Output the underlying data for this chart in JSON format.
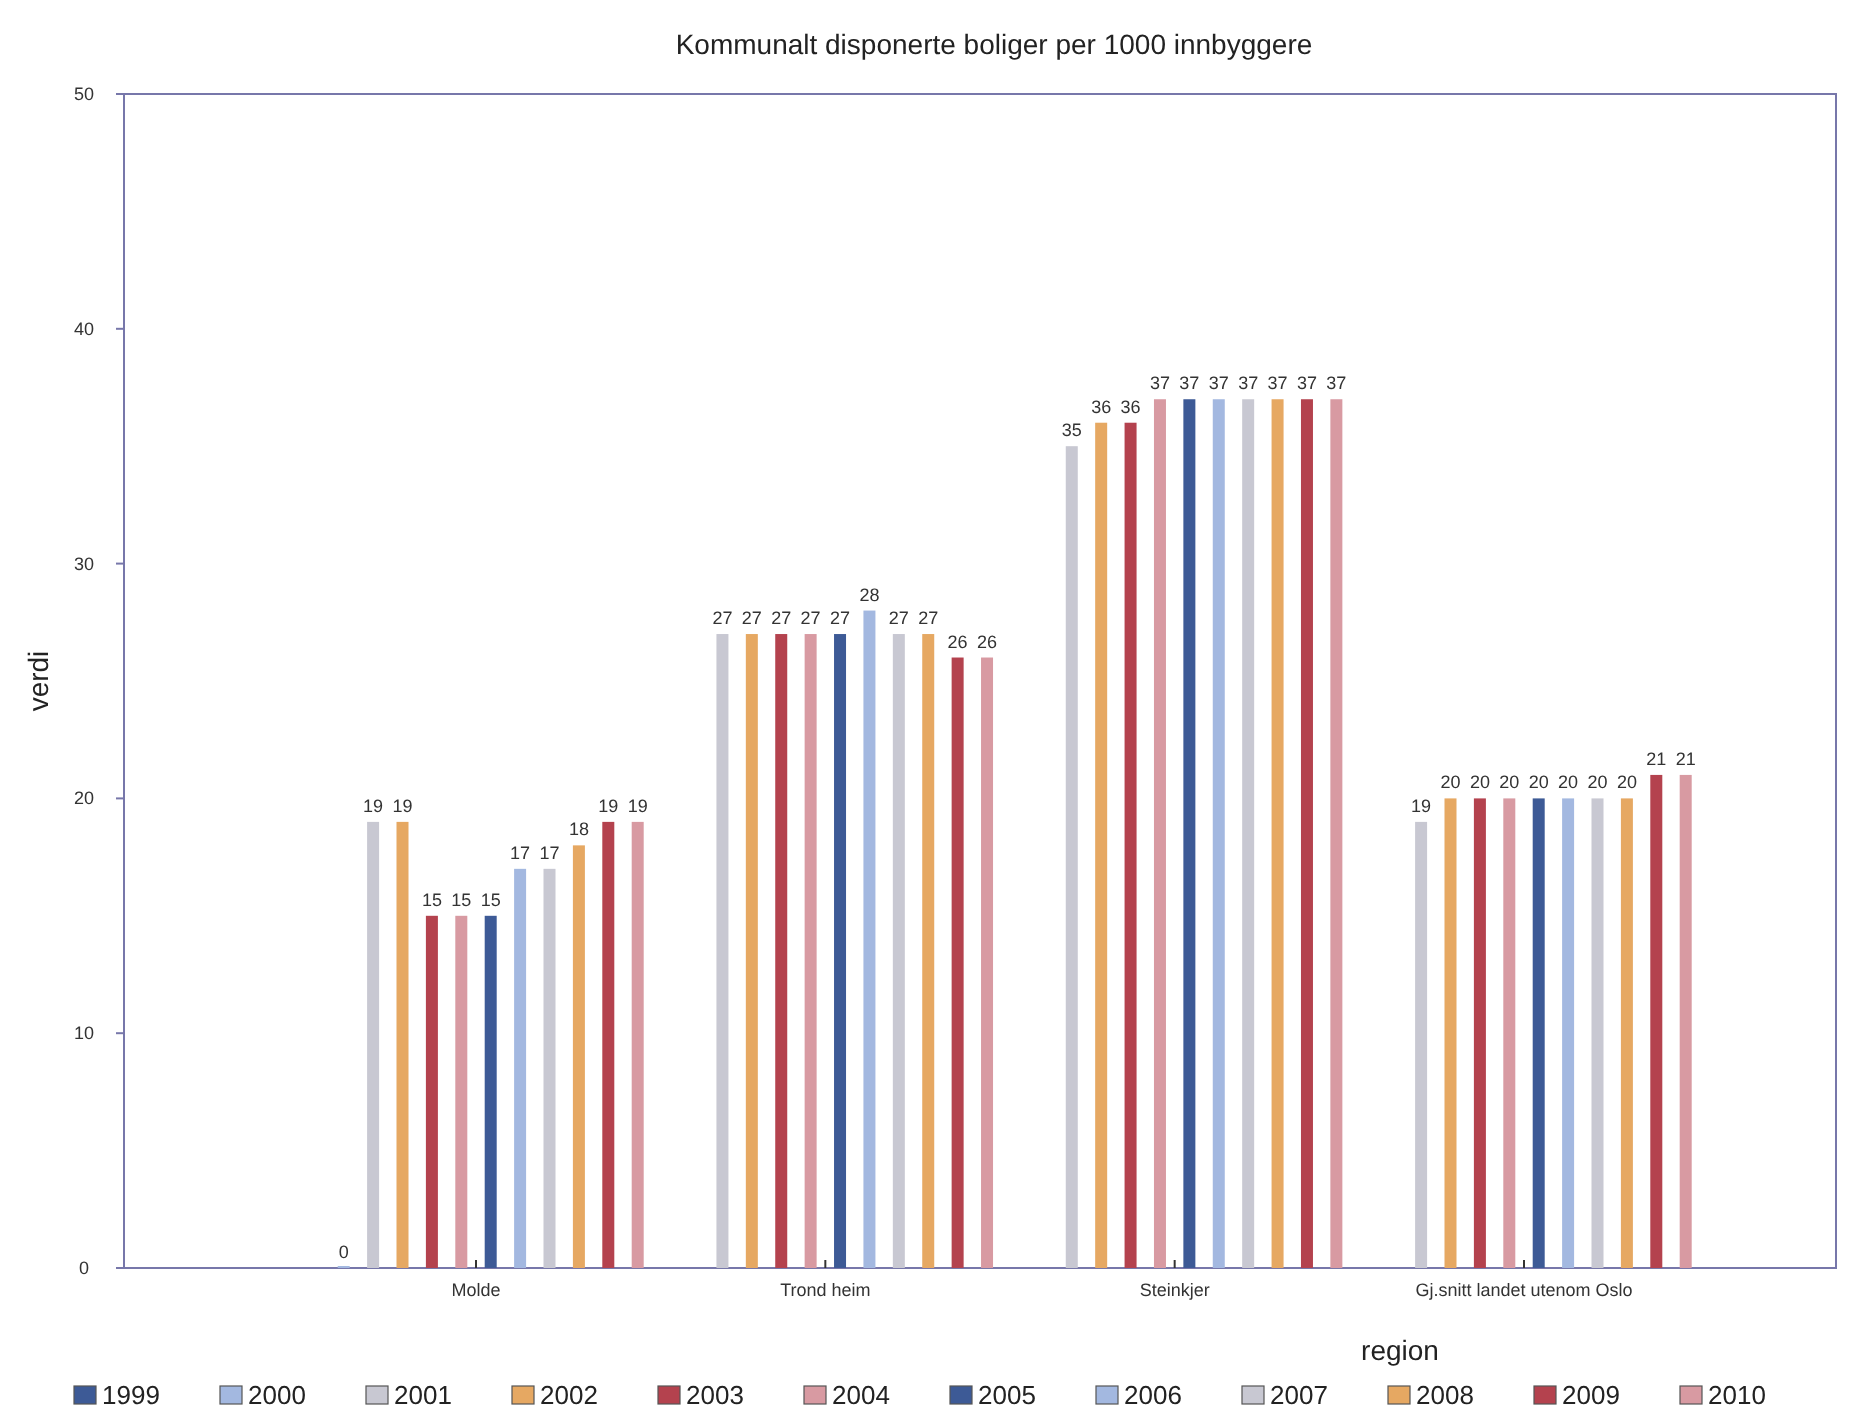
{
  "chart_data": {
    "type": "bar",
    "title": "Kommunalt disponerte boliger per 1000 innbyggere",
    "xlabel": "region",
    "ylabel": "verdi",
    "categories": [
      "Molde",
      "Trond heim",
      "Steinkjer",
      "Gj.snitt landet utenom Oslo"
    ],
    "series": [
      {
        "name": "1999",
        "color": "#3d5a96",
        "values": [
          null,
          null,
          null,
          null
        ]
      },
      {
        "name": "2000",
        "color": "#a3b8e0",
        "values": [
          0,
          null,
          null,
          null
        ]
      },
      {
        "name": "2001",
        "color": "#c8c8d2",
        "values": [
          19,
          27,
          35,
          19
        ]
      },
      {
        "name": "2002",
        "color": "#e6a862",
        "values": [
          19,
          27,
          36,
          20
        ]
      },
      {
        "name": "2003",
        "color": "#b4424e",
        "values": [
          15,
          27,
          36,
          20
        ]
      },
      {
        "name": "2004",
        "color": "#d89aa2",
        "values": [
          15,
          27,
          37,
          20
        ]
      },
      {
        "name": "2005",
        "color": "#3d5a96",
        "values": [
          15,
          27,
          37,
          20
        ]
      },
      {
        "name": "2006",
        "color": "#a3b8e0",
        "values": [
          17,
          28,
          37,
          20
        ]
      },
      {
        "name": "2007",
        "color": "#c8c8d2",
        "values": [
          17,
          27,
          37,
          20
        ]
      },
      {
        "name": "2008",
        "color": "#e6a862",
        "values": [
          18,
          27,
          37,
          20
        ]
      },
      {
        "name": "2009",
        "color": "#b4424e",
        "values": [
          19,
          26,
          37,
          21
        ]
      },
      {
        "name": "2010",
        "color": "#d89aa2",
        "values": [
          19,
          26,
          37,
          21
        ]
      }
    ],
    "ylim": [
      0,
      50
    ],
    "yticks": [
      0,
      10,
      20,
      30,
      40,
      50
    ],
    "grid": false,
    "legend": "bottom",
    "data_labels": true
  }
}
